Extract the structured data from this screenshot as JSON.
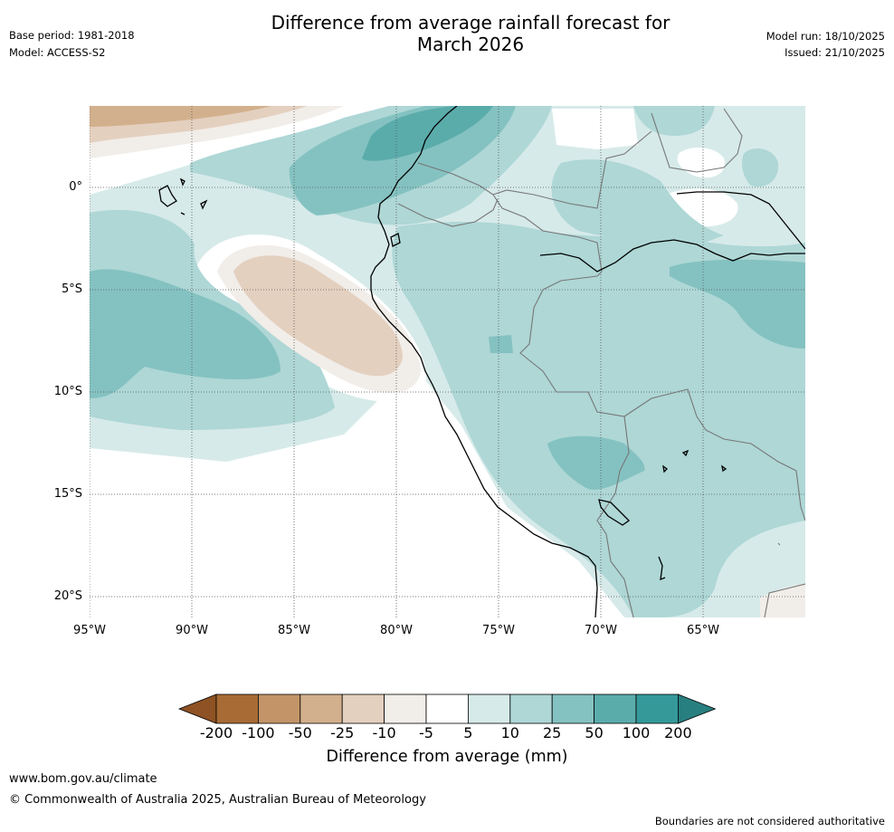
{
  "header": {
    "title_line1": "Difference from average rainfall forecast for",
    "title_line2": "March 2026",
    "base_period": "Base period: 1981-2018",
    "model": "Model: ACCESS-S2",
    "model_run": "Model run: 18/10/2025",
    "issued": "Issued: 21/10/2025"
  },
  "map": {
    "lat_labels": [
      "0°",
      "5°S",
      "10°S",
      "15°S",
      "20°S"
    ],
    "lon_labels": [
      "95°W",
      "90°W",
      "85°W",
      "80°W",
      "75°W",
      "70°W",
      "65°W"
    ]
  },
  "colorbar": {
    "ticks": [
      "-200",
      "-100",
      "-50",
      "-25",
      "-10",
      "-5",
      "5",
      "10",
      "25",
      "50",
      "100",
      "200"
    ],
    "colors": [
      "#a86b35",
      "#c39467",
      "#d3b08d",
      "#e4d0bf",
      "#f1ede9",
      "#ffffff",
      "#d6eae9",
      "#aed7d6",
      "#84c2c1",
      "#5aacab",
      "#35999a"
    ],
    "under_color": "#8e5224",
    "over_color": "#287f80",
    "label": "Difference from average (mm)"
  },
  "footer": {
    "url": "www.bom.gov.au/climate",
    "copyright": "© Commonwealth of Australia 2025, Australian Bureau of Meteorology",
    "disclaimer": "Boundaries are not considered authoritative"
  }
}
